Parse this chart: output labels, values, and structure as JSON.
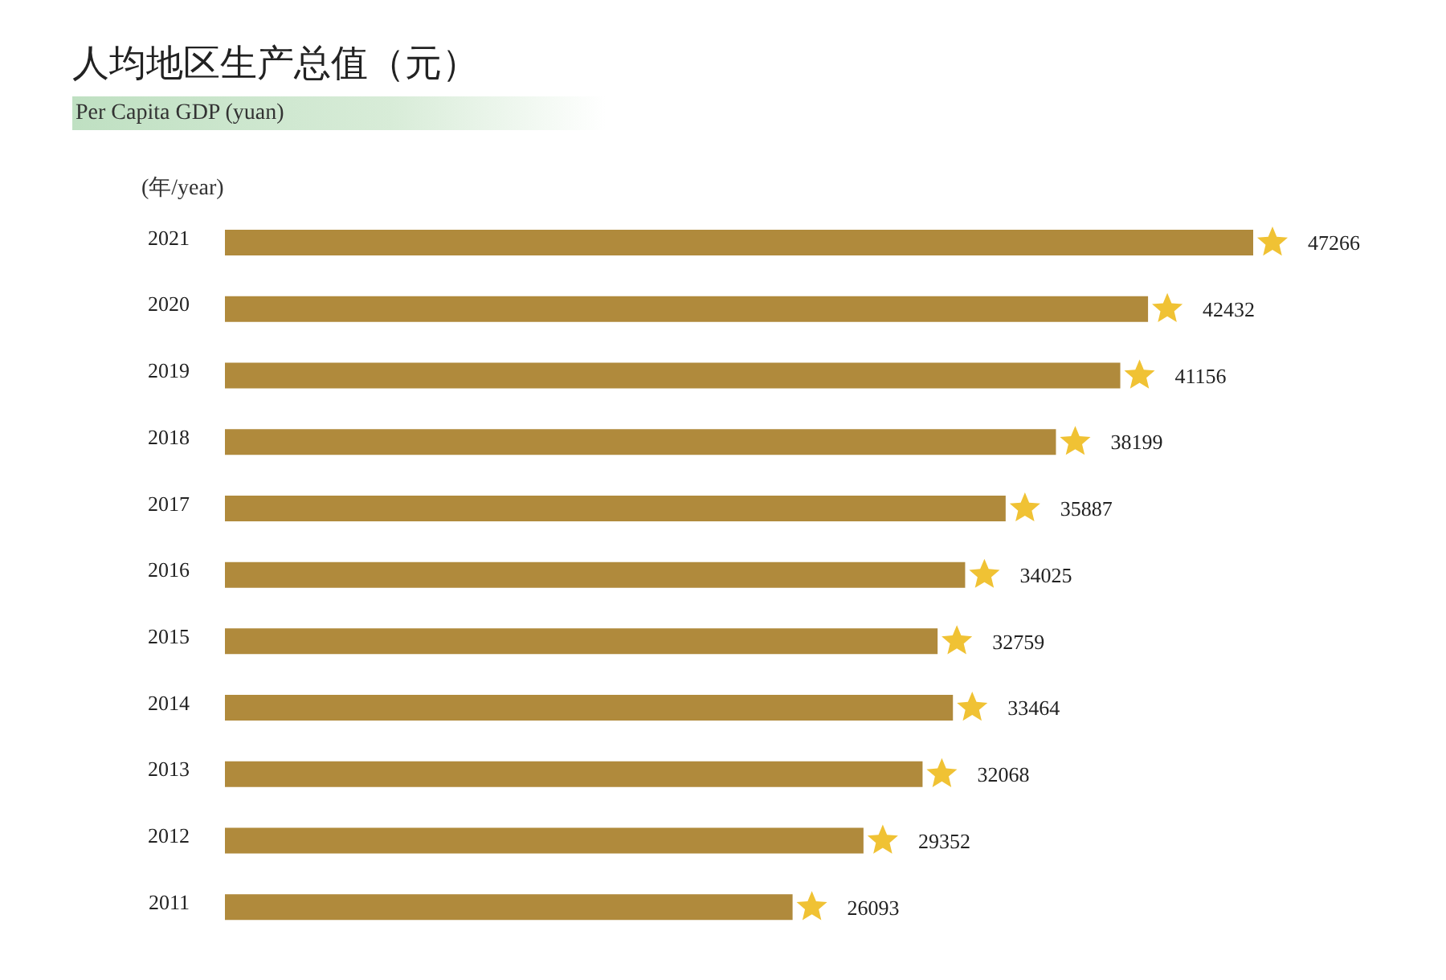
{
  "chart_data": {
    "type": "bar",
    "title": "人均地区生产总值（元）",
    "subtitle": "Per Capita GDP (yuan)",
    "ylabel": "(年/year)",
    "orientation": "horizontal",
    "categories": [
      "2021",
      "2020",
      "2019",
      "2018",
      "2017",
      "2016",
      "2015",
      "2014",
      "2013",
      "2012",
      "2011"
    ],
    "values": [
      47266,
      42432,
      41156,
      38199,
      35887,
      34025,
      32759,
      33464,
      32068,
      29352,
      26093
    ],
    "color": "#b08a3c",
    "data_labels": true
  }
}
